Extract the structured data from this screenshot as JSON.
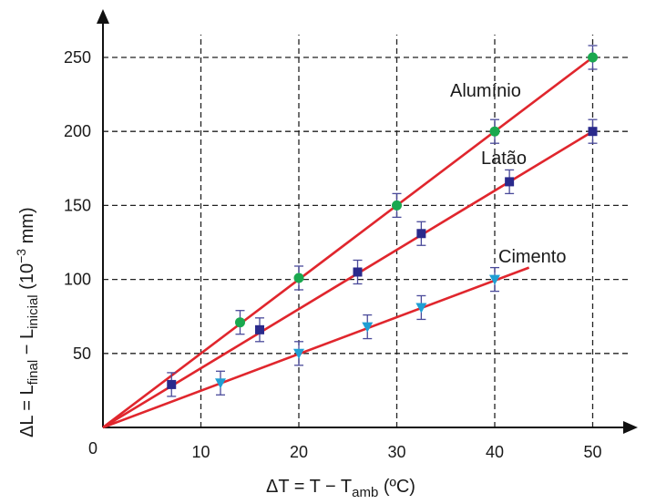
{
  "chart_data": {
    "type": "scatter",
    "xlabel": {
      "base": "ΔT = T − T",
      "sub": "amb",
      "tail": " (ºC)"
    },
    "ylabel": {
      "p1": "ΔL = L",
      "sub1": "final",
      "p2": " − L",
      "sub2": "inicial",
      "p3": " (10",
      "sup": "−3",
      "p4": " mm)"
    },
    "origin_label": "0",
    "xlim": [
      0,
      55
    ],
    "ylim": [
      0,
      270
    ],
    "x_ticks": [
      10,
      20,
      30,
      40,
      50
    ],
    "y_ticks": [
      50,
      100,
      150,
      200,
      250
    ],
    "grid": true,
    "series": [
      {
        "name": "Alumínio",
        "marker": "circle",
        "color": "#1aa84f",
        "x": [
          14,
          20,
          30,
          40,
          50
        ],
        "y": [
          71,
          101,
          150,
          200,
          250
        ],
        "err": [
          8,
          8,
          8,
          8,
          8
        ],
        "fit": {
          "x": [
            0,
            50
          ],
          "y": [
            0,
            250
          ]
        }
      },
      {
        "name": "Latão",
        "marker": "square",
        "color": "#2a2a8c",
        "x": [
          7,
          16,
          26,
          32.5,
          41.5,
          50
        ],
        "y": [
          29,
          66,
          105,
          131,
          166,
          200
        ],
        "err": [
          8,
          8,
          8,
          8,
          8,
          8
        ],
        "fit": {
          "x": [
            0,
            50
          ],
          "y": [
            0,
            200
          ]
        }
      },
      {
        "name": "Cimento",
        "marker": "triangle-down",
        "color": "#1f9fd4",
        "x": [
          12,
          20,
          27,
          32.5,
          40
        ],
        "y": [
          30,
          50,
          68,
          81,
          100
        ],
        "err": [
          8,
          8,
          8,
          8,
          8
        ],
        "fit": {
          "x": [
            0,
            43.5
          ],
          "y": [
            0,
            108
          ]
        }
      }
    ],
    "fit_color": "#e0262d",
    "errorbar_color": "#4a4a9a"
  }
}
